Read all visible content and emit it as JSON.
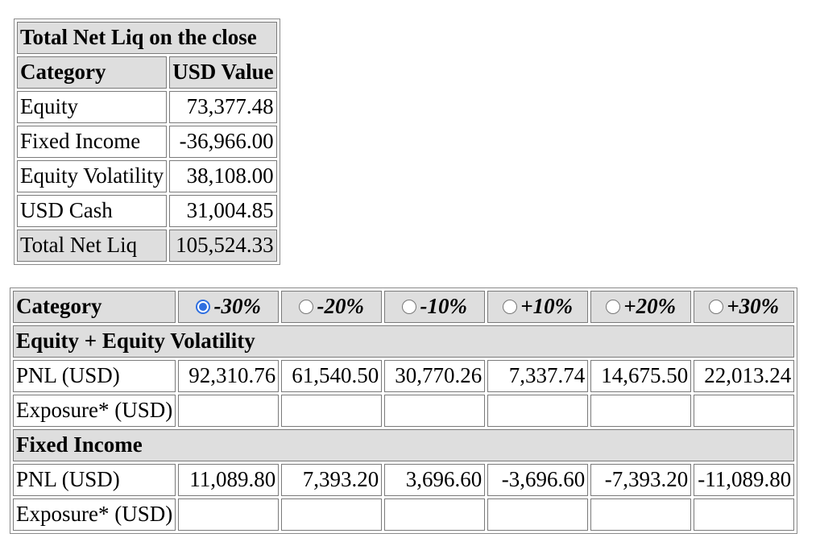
{
  "net_liq": {
    "title": "Total Net Liq on the close",
    "headers": {
      "category": "Category",
      "value": "USD Value"
    },
    "rows": [
      {
        "category": "Equity",
        "value": "73,377.48"
      },
      {
        "category": "Fixed Income",
        "value": "-36,966.00"
      },
      {
        "category": "Equity Volatility",
        "value": "38,108.00"
      },
      {
        "category": "USD Cash",
        "value": "31,004.85"
      }
    ],
    "total": {
      "category": "Total Net Liq",
      "value": "105,524.33"
    }
  },
  "scenarios": {
    "category_header": "Category",
    "options": [
      {
        "label": "-30%",
        "checked": true
      },
      {
        "label": "-20%",
        "checked": false
      },
      {
        "label": "-10%",
        "checked": false
      },
      {
        "label": "+10%",
        "checked": false
      },
      {
        "label": "+20%",
        "checked": false
      },
      {
        "label": "+30%",
        "checked": false
      }
    ],
    "groups": [
      {
        "name": "Equity + Equity Volatility",
        "pnl_label": "PNL (USD)",
        "pnl": [
          "92,310.76",
          "61,540.50",
          "30,770.26",
          "7,337.74",
          "14,675.50",
          "22,013.24"
        ],
        "exposure_label": "Exposure* (USD)",
        "exposure": [
          "",
          "",
          "",
          "",
          "",
          ""
        ]
      },
      {
        "name": "Fixed Income",
        "pnl_label": "PNL (USD)",
        "pnl": [
          "11,089.80",
          "7,393.20",
          "3,696.60",
          "-3,696.60",
          "-7,393.20",
          "-11,089.80"
        ],
        "exposure_label": "Exposure* (USD)",
        "exposure": [
          "",
          "",
          "",
          "",
          "",
          ""
        ]
      }
    ]
  }
}
